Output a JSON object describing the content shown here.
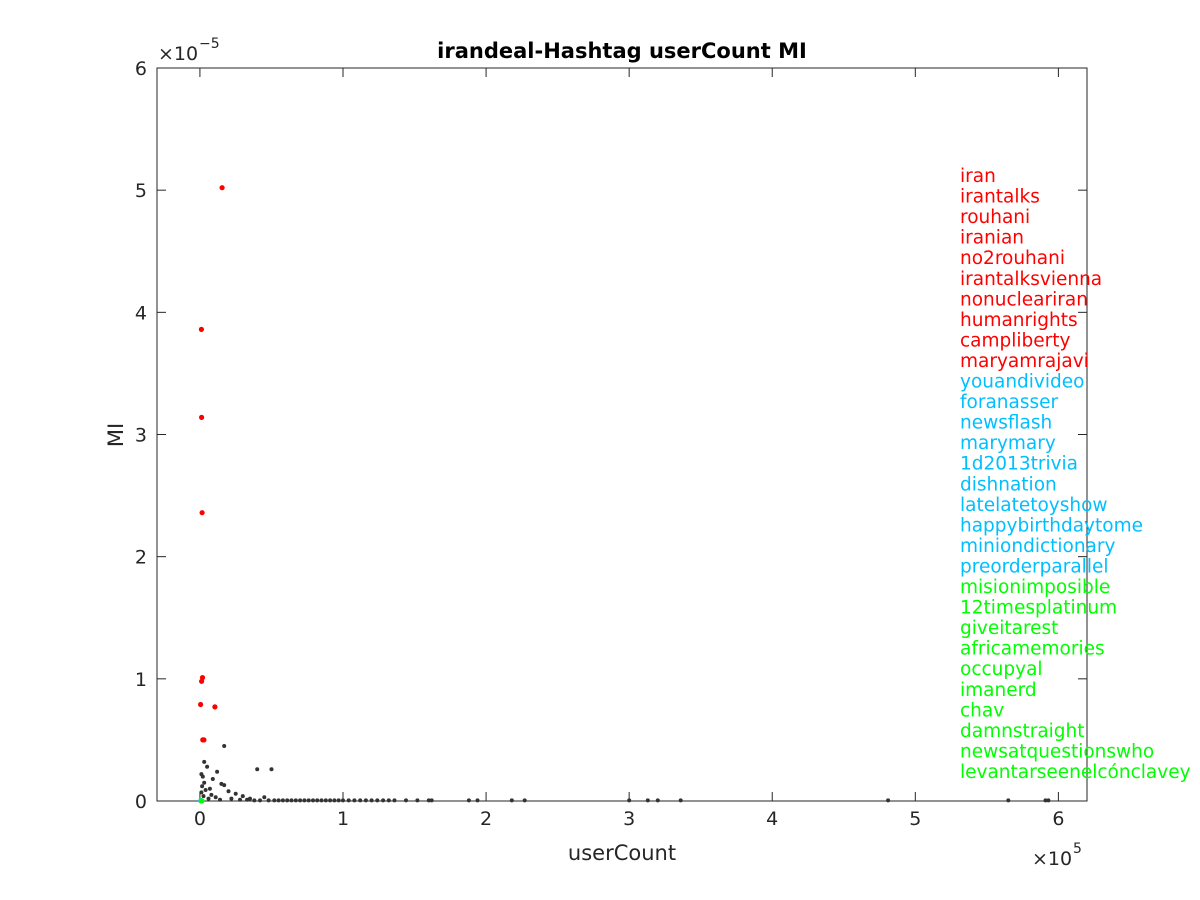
{
  "chart_data": {
    "type": "scatter",
    "title": "irandeal-Hashtag userCount MI",
    "xlabel": "userCount",
    "ylabel": "MI",
    "x_exponent_label": "×10",
    "x_exponent": "5",
    "y_exponent_label": "×10",
    "y_exponent": "−5",
    "xlim": [
      -30000,
      620000
    ],
    "ylim": [
      0,
      6e-05
    ],
    "x_ticks": [
      0,
      100000,
      200000,
      300000,
      400000,
      500000,
      600000
    ],
    "x_tick_labels": [
      "0",
      "1",
      "2",
      "3",
      "4",
      "5",
      "6"
    ],
    "y_ticks": [
      0,
      1e-05,
      2e-05,
      3e-05,
      4e-05,
      5e-05,
      6e-05
    ],
    "y_tick_labels": [
      "0",
      "1",
      "2",
      "3",
      "4",
      "5",
      "6"
    ],
    "grid": false,
    "colors": {
      "top": "#ff0000",
      "mid": "#00bfff",
      "low": "#00ff00",
      "other": "#333333"
    },
    "series": [
      {
        "group": "top",
        "color": "#ff0000",
        "points": [
          [
            15500,
            5.02e-05
          ],
          [
            1000,
            3.86e-05
          ],
          [
            1200,
            3.14e-05
          ],
          [
            1500,
            2.36e-05
          ],
          [
            1800,
            1.01e-05
          ],
          [
            1200,
            9.8e-06
          ],
          [
            500,
            7.9e-06
          ],
          [
            10500,
            7.7e-06
          ],
          [
            2000,
            5e-06
          ],
          [
            2800,
            5e-06
          ]
        ]
      },
      {
        "group": "other",
        "color": "#333333",
        "points": [
          [
            17000,
            4.5e-06
          ],
          [
            40000,
            2.6e-06
          ],
          [
            50000,
            2.6e-06
          ],
          [
            3000,
            3.2e-06
          ],
          [
            5000,
            2.8e-06
          ],
          [
            1000,
            2.2e-06
          ],
          [
            2000,
            2e-06
          ],
          [
            12000,
            2.4e-06
          ],
          [
            15000,
            1.4e-06
          ],
          [
            17000,
            1.3e-06
          ],
          [
            20000,
            8e-07
          ],
          [
            9000,
            1.8e-06
          ],
          [
            7000,
            1e-06
          ],
          [
            3000,
            1.5e-06
          ],
          [
            1500,
            1.2e-06
          ],
          [
            4000,
            9e-07
          ],
          [
            25000,
            6e-07
          ],
          [
            30000,
            4e-07
          ],
          [
            35000,
            2e-07
          ],
          [
            45000,
            3e-07
          ],
          [
            8000,
            5e-07
          ],
          [
            11000,
            3e-07
          ],
          [
            1000,
            7e-07
          ],
          [
            2500,
            4e-07
          ],
          [
            6000,
            2e-07
          ],
          [
            14000,
            1e-07
          ],
          [
            22000,
            2e-07
          ],
          [
            28000,
            1e-07
          ],
          [
            33000,
            1e-07
          ],
          [
            38000,
            5e-08
          ],
          [
            42000,
            5e-08
          ],
          [
            48000,
            5e-08
          ],
          [
            52000,
            5e-08
          ],
          [
            55000,
            5e-08
          ],
          [
            58000,
            5e-08
          ],
          [
            61000,
            5e-08
          ],
          [
            64000,
            5e-08
          ],
          [
            67000,
            5e-08
          ],
          [
            70000,
            5e-08
          ],
          [
            73000,
            5e-08
          ],
          [
            76000,
            5e-08
          ],
          [
            79000,
            5e-08
          ],
          [
            82000,
            5e-08
          ],
          [
            85000,
            5e-08
          ],
          [
            88000,
            5e-08
          ],
          [
            91000,
            5e-08
          ],
          [
            94000,
            5e-08
          ],
          [
            97000,
            5e-08
          ],
          [
            100000,
            5e-08
          ],
          [
            104000,
            5e-08
          ],
          [
            108000,
            5e-08
          ],
          [
            112000,
            5e-08
          ],
          [
            116000,
            5e-08
          ],
          [
            120000,
            5e-08
          ],
          [
            124000,
            5e-08
          ],
          [
            128000,
            5e-08
          ],
          [
            132000,
            5e-08
          ],
          [
            136000,
            5e-08
          ],
          [
            144000,
            5e-08
          ],
          [
            152000,
            5e-08
          ],
          [
            160000,
            5e-08
          ],
          [
            162000,
            5e-08
          ],
          [
            188000,
            5e-08
          ],
          [
            194000,
            5e-08
          ],
          [
            218000,
            5e-08
          ],
          [
            227000,
            5e-08
          ],
          [
            300000,
            5e-08
          ],
          [
            313000,
            5e-08
          ],
          [
            320000,
            5e-08
          ],
          [
            336000,
            5e-08
          ],
          [
            481000,
            5e-08
          ],
          [
            565000,
            5e-08
          ],
          [
            591000,
            5e-08
          ],
          [
            593000,
            5e-08
          ]
        ]
      },
      {
        "group": "mid",
        "color": "#00bfff",
        "points": [
          [
            600,
            2e-08
          ],
          [
            800,
            3e-08
          ]
        ]
      },
      {
        "group": "low",
        "color": "#00ff00",
        "points": [
          [
            1000,
            1e-08
          ],
          [
            1400,
            1e-08
          ]
        ]
      }
    ],
    "annotations": [
      {
        "text": "iran",
        "color": "#ff0000"
      },
      {
        "text": "irantalks",
        "color": "#ff0000"
      },
      {
        "text": "rouhani",
        "color": "#ff0000"
      },
      {
        "text": "iranian",
        "color": "#ff0000"
      },
      {
        "text": "no2rouhani",
        "color": "#ff0000"
      },
      {
        "text": "irantalksvienna",
        "color": "#ff0000"
      },
      {
        "text": "nonucleariran",
        "color": "#ff0000"
      },
      {
        "text": "humanrights",
        "color": "#ff0000"
      },
      {
        "text": "campliberty",
        "color": "#ff0000"
      },
      {
        "text": "maryamrajavi",
        "color": "#ff0000"
      },
      {
        "text": "youandivideo",
        "color": "#00bfff"
      },
      {
        "text": "foranasser",
        "color": "#00bfff"
      },
      {
        "text": "newsflash",
        "color": "#00bfff"
      },
      {
        "text": "marymary",
        "color": "#00bfff"
      },
      {
        "text": "1d2013trivia",
        "color": "#00bfff"
      },
      {
        "text": "dishnation",
        "color": "#00bfff"
      },
      {
        "text": "latelatetoyshow",
        "color": "#00bfff"
      },
      {
        "text": "happybirthdaytome",
        "color": "#00bfff"
      },
      {
        "text": "miniondictionary",
        "color": "#00bfff"
      },
      {
        "text": "preorderparallel",
        "color": "#00bfff"
      },
      {
        "text": "misionimposible",
        "color": "#00ff00"
      },
      {
        "text": "12timesplatinum",
        "color": "#00ff00"
      },
      {
        "text": "giveitarest",
        "color": "#00ff00"
      },
      {
        "text": "africamemories",
        "color": "#00ff00"
      },
      {
        "text": "occupyal",
        "color": "#00ff00"
      },
      {
        "text": "imanerd",
        "color": "#00ff00"
      },
      {
        "text": "chav",
        "color": "#00ff00"
      },
      {
        "text": "damnstraight",
        "color": "#00ff00"
      },
      {
        "text": "newsatquestionswho",
        "color": "#00ff00"
      },
      {
        "text": "levantarseenelcónclavey",
        "color": "#00ff00"
      }
    ]
  }
}
